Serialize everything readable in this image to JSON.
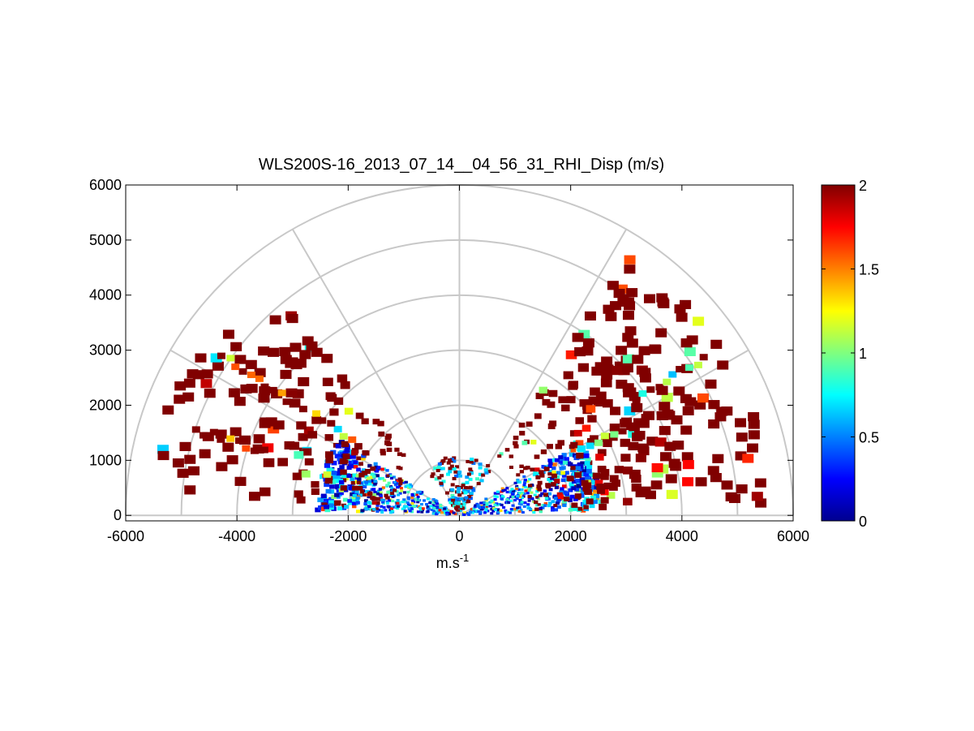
{
  "chart_data": {
    "type": "heatmap",
    "subtype": "polar-rhi-scan",
    "title": "WLS200S-16_2013_07_14__04_56_31_RHI_Disp (m/s)",
    "xlabel_base": "m.s",
    "xlabel_exponent": "-1",
    "ylabel": "",
    "xlim": [
      -6000,
      6000
    ],
    "ylim": [
      -100,
      6000
    ],
    "x_ticks": [
      "-6000",
      "-4000",
      "-2000",
      "0",
      "2000",
      "4000",
      "6000"
    ],
    "x_tick_values": [
      -6000,
      -4000,
      -2000,
      0,
      2000,
      4000,
      6000
    ],
    "y_ticks": [
      "0",
      "1000",
      "2000",
      "3000",
      "4000",
      "5000",
      "6000"
    ],
    "y_tick_values": [
      0,
      1000,
      2000,
      3000,
      4000,
      5000,
      6000
    ],
    "polar_grid": {
      "range_rings": [
        1000,
        2000,
        3000,
        4000,
        5000,
        6000
      ],
      "spokes_deg": [
        0,
        30,
        60,
        90,
        120,
        150,
        180
      ]
    },
    "colorbar": {
      "min": 0,
      "max": 2,
      "ticks": [
        "0",
        "0.5",
        "1",
        "1.5",
        "2"
      ],
      "tick_values": [
        0,
        0.5,
        1,
        1.5,
        2
      ],
      "colormap": "jet"
    },
    "data_description": "Radial velocity dispersion along RHI beams; low dispersion (0-0.8 m/s, blue/cyan) dominates below ~1500 m range at low elevations, high dispersion (~2 m/s, dark red) scattered at far ranges up to ~5500 m."
  }
}
